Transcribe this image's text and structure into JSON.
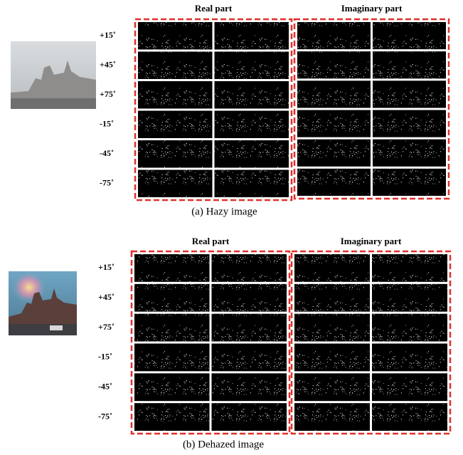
{
  "panels": [
    {
      "column_headers": [
        "Real part",
        "Imaginary part"
      ],
      "angles": [
        "+15˚",
        "+45˚",
        "+75˚",
        "-15˚",
        "-45˚",
        "-75˚"
      ],
      "caption": "(a) Hazy image"
    },
    {
      "column_headers": [
        "Real part",
        "Imaginary part"
      ],
      "angles": [
        "+15˚",
        "+45˚",
        "+75˚",
        "-15˚",
        "-45˚",
        "-75˚"
      ],
      "caption": "(b) Dehazed image"
    }
  ]
}
